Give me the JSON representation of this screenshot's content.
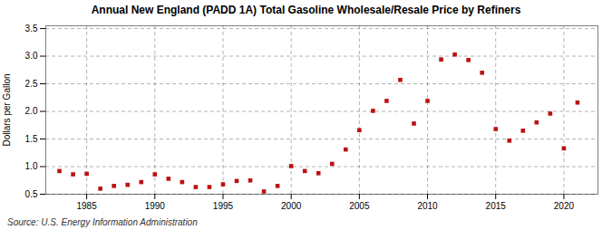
{
  "chart_data": {
    "type": "scatter",
    "title": "Annual New England (PADD 1A) Total Gasoline Wholesale/Resale Price by Refiners",
    "ylabel": "Dollars per Gallon",
    "caption": "Source: U.S. Energy Information Administration",
    "x": [
      1983,
      1984,
      1985,
      1986,
      1987,
      1988,
      1989,
      1990,
      1991,
      1992,
      1993,
      1994,
      1995,
      1996,
      1997,
      1998,
      1999,
      2000,
      2001,
      2002,
      2003,
      2004,
      2005,
      2006,
      2007,
      2008,
      2009,
      2010,
      2011,
      2012,
      2013,
      2014,
      2015,
      2016,
      2017,
      2018,
      2019,
      2020,
      2021
    ],
    "values": [
      0.92,
      0.86,
      0.87,
      0.6,
      0.65,
      0.67,
      0.72,
      0.86,
      0.78,
      0.72,
      0.63,
      0.63,
      0.68,
      0.74,
      0.75,
      0.55,
      0.65,
      1.01,
      0.92,
      0.88,
      1.05,
      1.31,
      1.66,
      2.01,
      2.19,
      2.57,
      1.78,
      2.19,
      2.94,
      3.03,
      2.93,
      2.7,
      1.68,
      1.47,
      1.65,
      1.8,
      1.96,
      1.33,
      2.16
    ],
    "color": "#bb1111",
    "marker": "square",
    "xlim": [
      1982,
      2022.5
    ],
    "ylim": [
      0.5,
      3.55
    ],
    "xticks": [
      1985,
      1990,
      1995,
      2000,
      2005,
      2010,
      2015,
      2020
    ],
    "yticks": [
      0.5,
      {
        "value": 1.0,
        "label": "1.0"
      },
      1.5,
      {
        "value": 2.0,
        "label": "2.0"
      },
      2.5,
      {
        "value": 3.0,
        "label": "3.0"
      },
      3.5
    ],
    "grid": true
  }
}
